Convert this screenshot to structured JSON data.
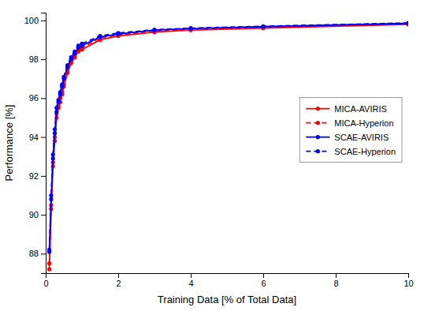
{
  "chart_data": {
    "type": "line",
    "xlabel": "Training Data [% of Total Data]",
    "ylabel": "Performance [%]",
    "x": [
      0.1,
      0.15,
      0.2,
      0.25,
      0.3,
      0.35,
      0.4,
      0.45,
      0.5,
      0.6,
      0.7,
      0.8,
      0.9,
      1.0,
      1.5,
      2.0,
      3.0,
      4.0,
      6.0,
      10.0
    ],
    "xlim": [
      0,
      10
    ],
    "ylim": [
      87.0,
      100.4
    ],
    "xticks": [
      0,
      2,
      4,
      6,
      8,
      10
    ],
    "yticks": [
      88,
      90,
      92,
      94,
      96,
      98,
      100
    ],
    "grid": false,
    "legend": "right",
    "series": [
      {
        "name": "MICA-AVIRIS",
        "color": "#ff0000",
        "line_style": "solid",
        "marker": "circle",
        "values": [
          87.2,
          90.3,
          92.5,
          93.8,
          95.0,
          95.5,
          95.8,
          96.2,
          96.6,
          97.3,
          97.8,
          98.1,
          98.4,
          98.5,
          99.0,
          99.2,
          99.4,
          99.5,
          99.6,
          99.8
        ]
      },
      {
        "name": "MICA-Hyperion",
        "color": "#ff0000",
        "line_style": "dashed",
        "marker": "circle",
        "values": [
          87.5,
          90.5,
          92.7,
          94.0,
          95.2,
          95.6,
          96.0,
          96.3,
          96.7,
          97.4,
          97.9,
          98.2,
          98.5,
          98.6,
          99.1,
          99.25,
          99.45,
          99.55,
          99.65,
          99.82
        ]
      },
      {
        "name": "SCAE-AVIRIS",
        "color": "#0000ff",
        "line_style": "solid",
        "marker": "circle",
        "values": [
          88.1,
          90.8,
          92.9,
          94.2,
          95.3,
          95.8,
          96.2,
          96.6,
          97.0,
          97.6,
          98.0,
          98.3,
          98.6,
          98.7,
          99.15,
          99.3,
          99.5,
          99.58,
          99.68,
          99.85
        ]
      },
      {
        "name": "SCAE-Hyperion",
        "color": "#0000ff",
        "line_style": "dashed",
        "marker": "circle",
        "values": [
          88.2,
          91.0,
          93.1,
          94.4,
          95.5,
          95.9,
          96.3,
          96.7,
          97.1,
          97.7,
          98.1,
          98.4,
          98.7,
          98.8,
          99.2,
          99.35,
          99.52,
          99.6,
          99.7,
          99.87
        ]
      }
    ]
  }
}
